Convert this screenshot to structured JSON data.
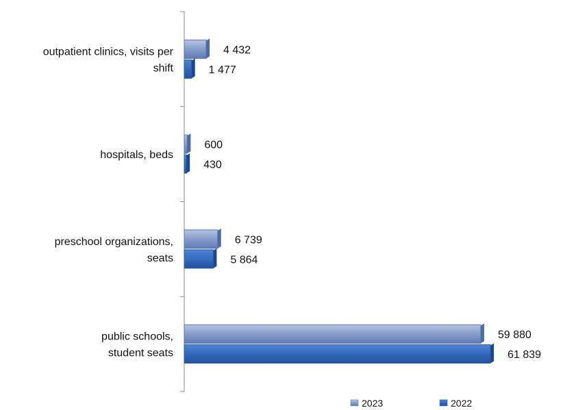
{
  "chart_data": {
    "type": "bar",
    "orientation": "horizontal",
    "categories": [
      "outpatient clinics, visits per shift",
      "hospitals, beds",
      "preschool organizations, seats",
      "public schools, student seats"
    ],
    "category_label_lines": [
      [
        "outpatient clinics, visits per",
        "shift"
      ],
      [
        "hospitals, beds"
      ],
      [
        "preschool organizations,",
        "seats"
      ],
      [
        "public schools,",
        "student seats"
      ]
    ],
    "series": [
      {
        "name": "2023",
        "color": "#7f96c4",
        "values": [
          4432,
          600,
          6739,
          59880
        ],
        "labels": [
          "4 432",
          "600",
          "6 739",
          "59 880"
        ]
      },
      {
        "name": "2022",
        "color": "#3d6fbf",
        "values": [
          1477,
          430,
          5864,
          61839
        ],
        "labels": [
          "1 477",
          "430",
          "5 864",
          "61 839"
        ]
      }
    ],
    "xlim": [
      0,
      70000
    ],
    "grid": false,
    "legend_position": "bottom"
  }
}
